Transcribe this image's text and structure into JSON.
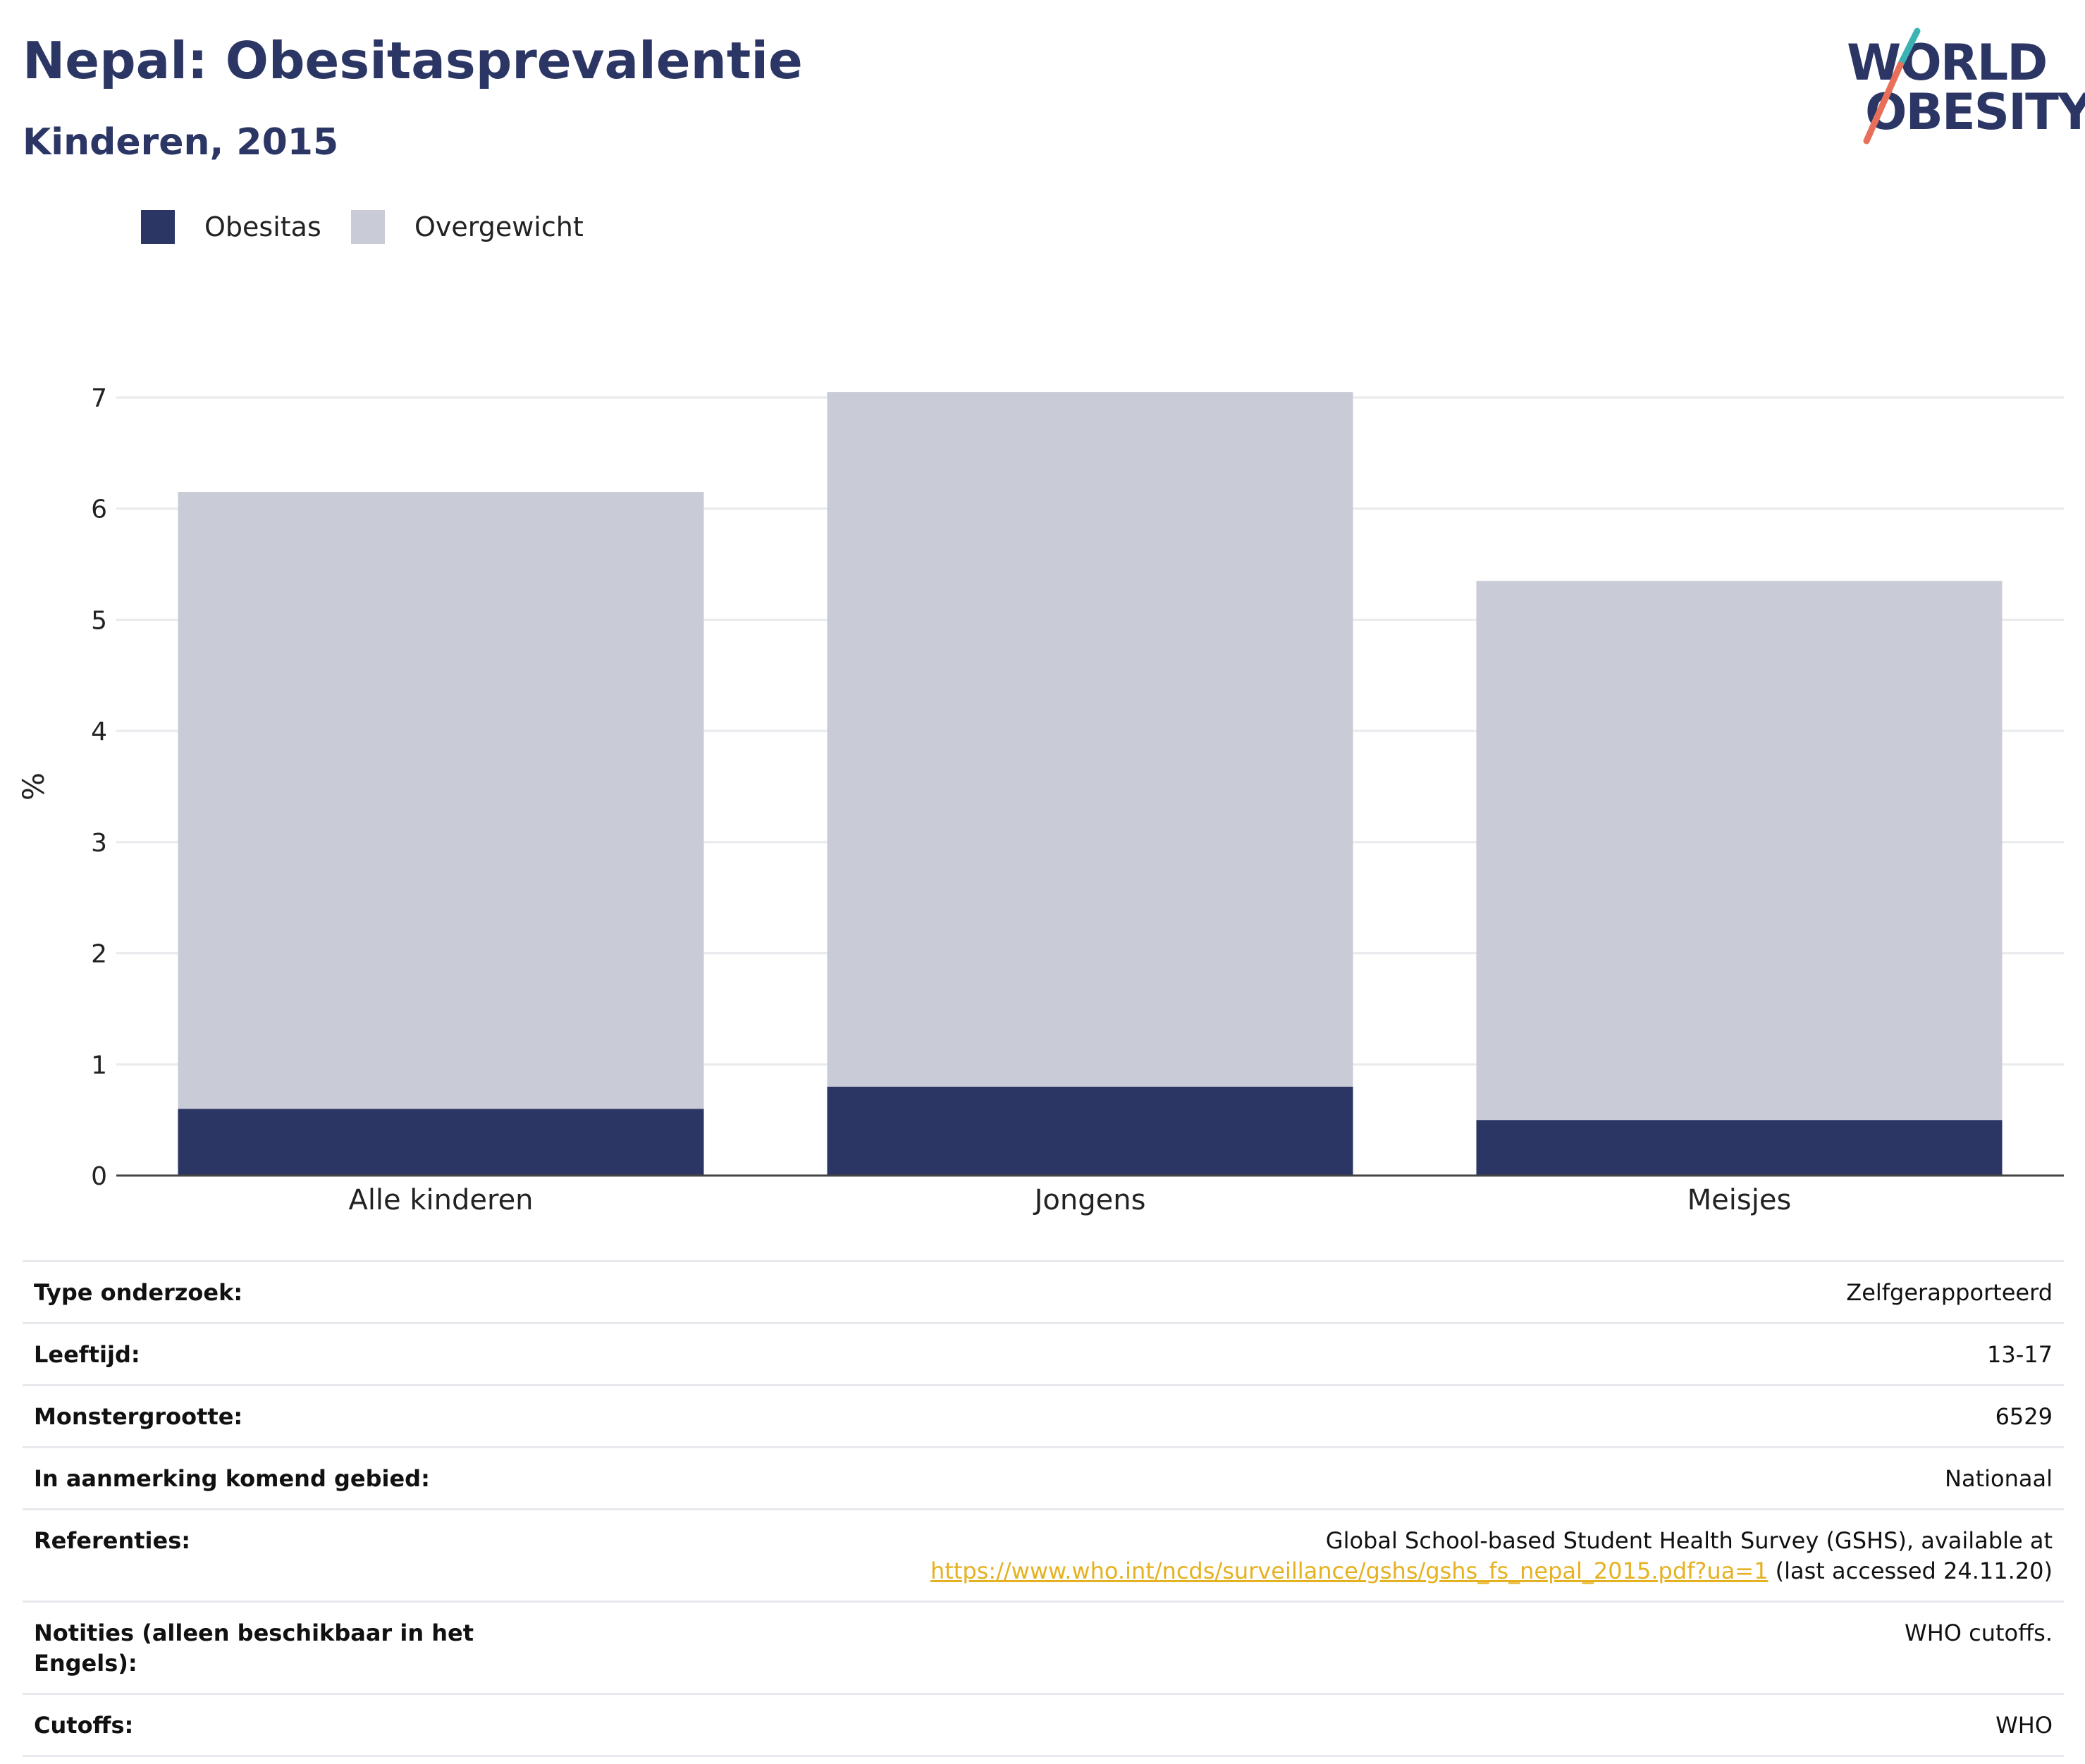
{
  "header": {
    "title": "Nepal: Obesitasprevalentie",
    "subtitle": "Kinderen, 2015"
  },
  "logo": {
    "line1": "WORLD",
    "line2": "OBESITY",
    "colors": {
      "text": "#2b3665",
      "slash_top": "#3bb3b3",
      "slash_bottom": "#e8705a"
    }
  },
  "legend": [
    {
      "label": "Obesitas",
      "color": "#2b3665"
    },
    {
      "label": "Overgewicht",
      "color": "#c9cbd6"
    }
  ],
  "chart_data": {
    "type": "bar",
    "stacked": true,
    "categories": [
      "Alle kinderen",
      "Jongens",
      "Meisjes"
    ],
    "series": [
      {
        "name": "Obesitas",
        "color": "#2b3665",
        "values": [
          0.6,
          0.8,
          0.5
        ]
      },
      {
        "name": "Overgewicht",
        "color": "#c9cbd6",
        "values": [
          5.55,
          6.25,
          4.85
        ]
      }
    ],
    "ylabel": "%",
    "xlabel": "",
    "ylim": [
      0,
      7
    ],
    "yticks": [
      0,
      1,
      2,
      3,
      4,
      5,
      6,
      7
    ],
    "grid": true,
    "legend_position": "top-left"
  },
  "info": {
    "rows": [
      {
        "key": "Type onderzoek:",
        "value": "Zelfgerapporteerd"
      },
      {
        "key": "Leeftijd:",
        "value": "13-17"
      },
      {
        "key": "Monstergrootte:",
        "value": "6529"
      },
      {
        "key": "In aanmerking komend gebied:",
        "value": "Nationaal"
      }
    ],
    "references": {
      "key": "Referenties:",
      "line1": "Global School-based Student Health Survey (GSHS), available at",
      "link": "https://www.who.int/ncds/surveillance/gshs/gshs_fs_nepal_2015.pdf?ua=1",
      "suffix": " (last accessed 24.11.20)"
    },
    "notes": {
      "key": "Notities (alleen beschikbaar in het Engels):",
      "value": "WHO cutoffs."
    },
    "cutoffs": {
      "key": "Cutoffs:",
      "value": "WHO"
    }
  }
}
